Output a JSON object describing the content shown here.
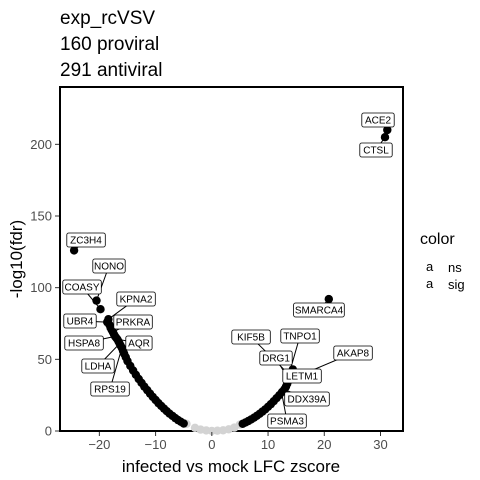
{
  "title_lines": [
    "exp_rcVSV",
    "160 proviral",
    "291 antiviral"
  ],
  "chart_data": {
    "type": "scatter",
    "xlabel": "infected vs mock LFC zscore",
    "ylabel": "-log10(fdr)",
    "xlim": [
      -27,
      34
    ],
    "ylim": [
      0,
      240
    ],
    "xticks": [
      -20,
      -10,
      0,
      10,
      20,
      30
    ],
    "yticks": [
      0,
      50,
      100,
      150,
      200
    ],
    "xtick_labels": [
      "−20",
      "−10",
      "0",
      "10",
      "20",
      "30"
    ],
    "ytick_labels": [
      "0",
      "50",
      "100",
      "150",
      "200"
    ],
    "grid": false,
    "legend": {
      "title": "color",
      "position": "right",
      "entries": [
        {
          "key": "a",
          "label": "ns",
          "color": "#d3d3d3"
        },
        {
          "key": "a",
          "label": "sig",
          "color": "#000000"
        }
      ]
    },
    "labeled_points": [
      {
        "gene": "ACE2",
        "x": 31.2,
        "y": 210
      },
      {
        "gene": "CTSL",
        "x": 30.8,
        "y": 205
      },
      {
        "gene": "ZC3H4",
        "x": -24.5,
        "y": 126
      },
      {
        "gene": "SMARCA4",
        "x": 20.8,
        "y": 92
      },
      {
        "gene": "NONO",
        "x": -20.5,
        "y": 91
      },
      {
        "gene": "COASY",
        "x": -19.8,
        "y": 85
      },
      {
        "gene": "KPNA2",
        "x": -18.4,
        "y": 78
      },
      {
        "gene": "UBR4",
        "x": -18.6,
        "y": 76
      },
      {
        "gene": "PRKRA",
        "x": -17.6,
        "y": 69
      },
      {
        "gene": "HSPA8",
        "x": -17.2,
        "y": 66
      },
      {
        "gene": "AQR",
        "x": -16.8,
        "y": 64
      },
      {
        "gene": "LDHA",
        "x": -16.4,
        "y": 61
      },
      {
        "gene": "RPS19",
        "x": -16.0,
        "y": 58
      },
      {
        "gene": "KIF5B",
        "x": 13.6,
        "y": 40
      },
      {
        "gene": "TNPO1",
        "x": 13.9,
        "y": 42
      },
      {
        "gene": "DRG1",
        "x": 13.3,
        "y": 38
      },
      {
        "gene": "AKAP8",
        "x": 14.0,
        "y": 36
      },
      {
        "gene": "LETM1",
        "x": 13.4,
        "y": 33
      },
      {
        "gene": "DDX39A",
        "x": 12.9,
        "y": 29
      },
      {
        "gene": "PSMA3",
        "x": 12.5,
        "y": 25
      }
    ],
    "series": [
      {
        "name": "ns",
        "color": "#d3d3d3",
        "points": [
          [
            -4.5,
            5
          ],
          [
            -3,
            2.2
          ],
          [
            -2,
            1
          ],
          [
            -1,
            0.4
          ],
          [
            0,
            0.1
          ],
          [
            1,
            0.2
          ],
          [
            2,
            0.5
          ],
          [
            3,
            1.2
          ],
          [
            4,
            2.4
          ],
          [
            5,
            4.5
          ]
        ]
      },
      {
        "name": "sig",
        "color": "#000000",
        "points": [
          [
            -5,
            5.2
          ],
          [
            -5.5,
            6.4
          ],
          [
            -6,
            7.6
          ],
          [
            -6.5,
            9
          ],
          [
            -7,
            10.5
          ],
          [
            -7.5,
            12.1
          ],
          [
            -8,
            13.8
          ],
          [
            -8.5,
            15.6
          ],
          [
            -9,
            17.5
          ],
          [
            -9.5,
            19.5
          ],
          [
            -10,
            21.6
          ],
          [
            -10.5,
            23.8
          ],
          [
            -11,
            26.1
          ],
          [
            -11.5,
            28.5
          ],
          [
            -12,
            31
          ],
          [
            -12.5,
            33.6
          ],
          [
            -13,
            36.3
          ],
          [
            -13.5,
            39.2
          ],
          [
            -14,
            42.2
          ],
          [
            -14.5,
            45.4
          ],
          [
            -15,
            48.8
          ],
          [
            -15.3,
            51.5
          ],
          [
            -15.6,
            54
          ],
          [
            -15.8,
            56
          ],
          [
            -16,
            58
          ],
          [
            -16.2,
            59.5
          ],
          [
            -16.4,
            61
          ],
          [
            -16.6,
            62.5
          ],
          [
            -16.8,
            64
          ],
          [
            -17,
            65
          ],
          [
            -17.2,
            66
          ],
          [
            -17.4,
            67.5
          ],
          [
            -17.6,
            69
          ],
          [
            -17.8,
            70.5
          ],
          [
            -18,
            72
          ],
          [
            -18.2,
            74
          ],
          [
            -18.6,
            76
          ],
          [
            -18.4,
            78
          ],
          [
            -19.8,
            85
          ],
          [
            -20.5,
            91
          ],
          [
            -24.5,
            126
          ],
          [
            5.5,
            5
          ],
          [
            6,
            6
          ],
          [
            6.5,
            7
          ],
          [
            7,
            8.1
          ],
          [
            7.5,
            9.3
          ],
          [
            8,
            10.6
          ],
          [
            8.5,
            12
          ],
          [
            9,
            13.5
          ],
          [
            9.5,
            15.1
          ],
          [
            10,
            16.9
          ],
          [
            10.5,
            18.8
          ],
          [
            11,
            20.8
          ],
          [
            11.5,
            22.9
          ],
          [
            12,
            25
          ],
          [
            12.5,
            27.2
          ],
          [
            12.9,
            29
          ],
          [
            13.2,
            31
          ],
          [
            13.4,
            33
          ],
          [
            13.6,
            35
          ],
          [
            13.8,
            37
          ],
          [
            14,
            39
          ],
          [
            14.2,
            41
          ],
          [
            14.4,
            43
          ],
          [
            20.8,
            92
          ],
          [
            30.8,
            205
          ],
          [
            31.2,
            210
          ]
        ]
      }
    ]
  }
}
